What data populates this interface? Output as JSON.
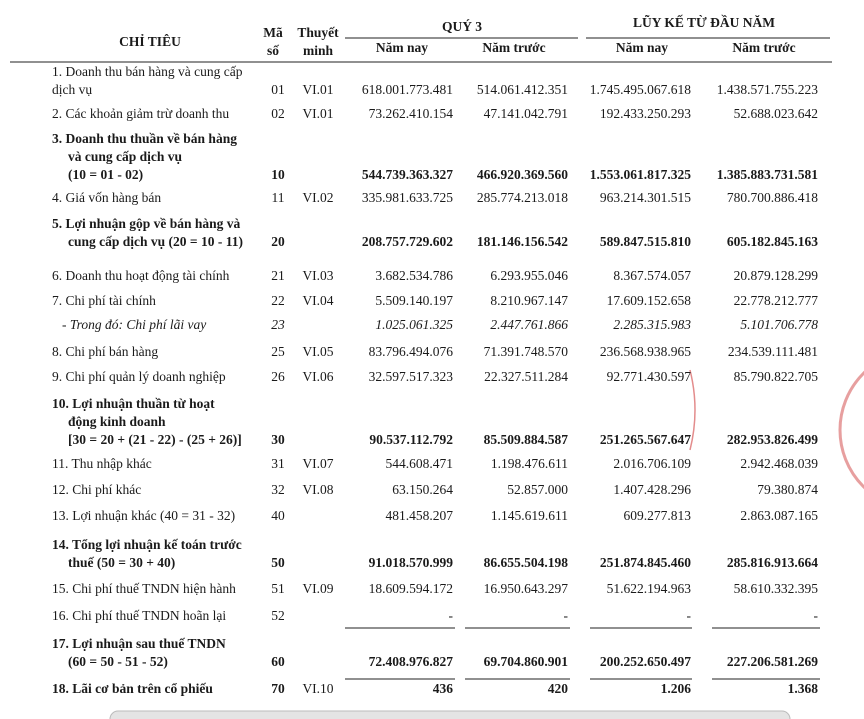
{
  "header": {
    "title": "CHỈ TIÊU",
    "code": [
      "Mã",
      "số"
    ],
    "note": [
      "Thuyết",
      "minh"
    ],
    "group1": "QUÝ 3",
    "group2": "LŨY KẾ TỪ ĐẦU NĂM",
    "cols": [
      "Năm nay",
      "Năm trước",
      "Năm nay",
      "Năm trước"
    ]
  },
  "table": {
    "rows": [
      {
        "label": [
          "1. Doanh thu bán hàng và cung cấp",
          "dịch vụ"
        ],
        "code": "01",
        "note": "VI.01",
        "values": [
          "618.001.773.481",
          "514.061.412.351",
          "1.745.495.067.618",
          "1.438.571.755.223"
        ]
      },
      {
        "label": [
          "2. Các khoản giảm trừ doanh thu"
        ],
        "code": "02",
        "note": "VI.01",
        "values": [
          "73.262.410.154",
          "47.141.042.791",
          "192.433.250.293",
          "52.688.023.642"
        ]
      },
      {
        "label": [
          "3. Doanh thu thuần về bán hàng",
          "và cung cấp dịch vụ",
          "(10 = 01 - 02)"
        ],
        "code": "10",
        "bold": true,
        "values": [
          "544.739.363.327",
          "466.920.369.560",
          "1.553.061.817.325",
          "1.385.883.731.581"
        ]
      },
      {
        "label": [
          "4. Giá vốn hàng bán"
        ],
        "code": "11",
        "note": "VI.02",
        "values": [
          "335.981.633.725",
          "285.774.213.018",
          "963.214.301.515",
          "780.700.886.418"
        ]
      },
      {
        "label": [
          "5. Lợi nhuận gộp về bán hàng và",
          "cung cấp dịch vụ (20 = 10 - 11)"
        ],
        "code": "20",
        "bold": true,
        "values": [
          "208.757.729.602",
          "181.146.156.542",
          "589.847.515.810",
          "605.182.845.163"
        ]
      },
      {
        "label": [
          "6. Doanh thu hoạt động tài chính"
        ],
        "code": "21",
        "note": "VI.03",
        "values": [
          "3.682.534.786",
          "6.293.955.046",
          "8.367.574.057",
          "20.879.128.299"
        ]
      },
      {
        "label": [
          "7. Chi phí tài chính"
        ],
        "code": "22",
        "note": "VI.04",
        "values": [
          "5.509.140.197",
          "8.210.967.147",
          "17.609.152.658",
          "22.778.212.777"
        ]
      },
      {
        "label": [
          "- Trong đó: Chi phí lãi vay"
        ],
        "code": "23",
        "italic": true,
        "values": [
          "1.025.061.325",
          "2.447.761.866",
          "2.285.315.983",
          "5.101.706.778"
        ]
      },
      {
        "label": [
          "8. Chi phí bán hàng"
        ],
        "code": "25",
        "note": "VI.05",
        "values": [
          "83.796.494.076",
          "71.391.748.570",
          "236.568.938.965",
          "234.539.111.481"
        ]
      },
      {
        "label": [
          "9. Chi phí quản lý doanh nghiệp"
        ],
        "code": "26",
        "note": "VI.06",
        "values": [
          "32.597.517.323",
          "22.327.511.284",
          "92.771.430.597",
          "85.790.822.705"
        ]
      },
      {
        "label": [
          "10. Lợi nhuận thuần từ hoạt",
          "động kinh doanh",
          "[30 = 20 + (21 - 22) - (25 + 26)]"
        ],
        "code": "30",
        "bold": true,
        "values": [
          "90.537.112.792",
          "85.509.884.587",
          "251.265.567.647",
          "282.953.826.499"
        ]
      },
      {
        "label": [
          "11. Thu nhập khác"
        ],
        "code": "31",
        "note": "VI.07",
        "values": [
          "544.608.471",
          "1.198.476.611",
          "2.016.706.109",
          "2.942.468.039"
        ]
      },
      {
        "label": [
          "12. Chi phí khác"
        ],
        "code": "32",
        "note": "VI.08",
        "values": [
          "63.150.264",
          "52.857.000",
          "1.407.428.296",
          "79.380.874"
        ]
      },
      {
        "label": [
          "13. Lợi nhuận khác (40 = 31 - 32)"
        ],
        "code": "40",
        "values": [
          "481.458.207",
          "1.145.619.611",
          "609.277.813",
          "2.863.087.165"
        ]
      },
      {
        "label": [
          "14. Tổng lợi nhuận kế toán trước",
          "thuế (50 = 30 + 40)"
        ],
        "code": "50",
        "bold": true,
        "values": [
          "91.018.570.999",
          "86.655.504.198",
          "251.874.845.460",
          "285.816.913.664"
        ]
      },
      {
        "label": [
          "15. Chi phí thuế TNDN hiện hành"
        ],
        "code": "51",
        "note": "VI.09",
        "values": [
          "18.609.594.172",
          "16.950.643.297",
          "51.622.194.963",
          "58.610.332.395"
        ]
      },
      {
        "label": [
          "16. Chi phí thuế TNDN hoãn lại"
        ],
        "code": "52",
        "values": [
          "-",
          "-",
          "-",
          "-"
        ]
      },
      {
        "label": [
          "17. Lợi nhuận sau thuế TNDN",
          "(60 = 50 - 51 - 52)"
        ],
        "code": "60",
        "bold": true,
        "values": [
          "72.408.976.827",
          "69.704.860.901",
          "200.252.650.497",
          "227.206.581.269"
        ]
      },
      {
        "label": [
          "18. Lãi cơ bản trên cổ phiếu"
        ],
        "code": "70",
        "note": "VI.10",
        "bold": true,
        "values": [
          "436",
          "420",
          "1.206",
          "1.368"
        ]
      }
    ]
  }
}
